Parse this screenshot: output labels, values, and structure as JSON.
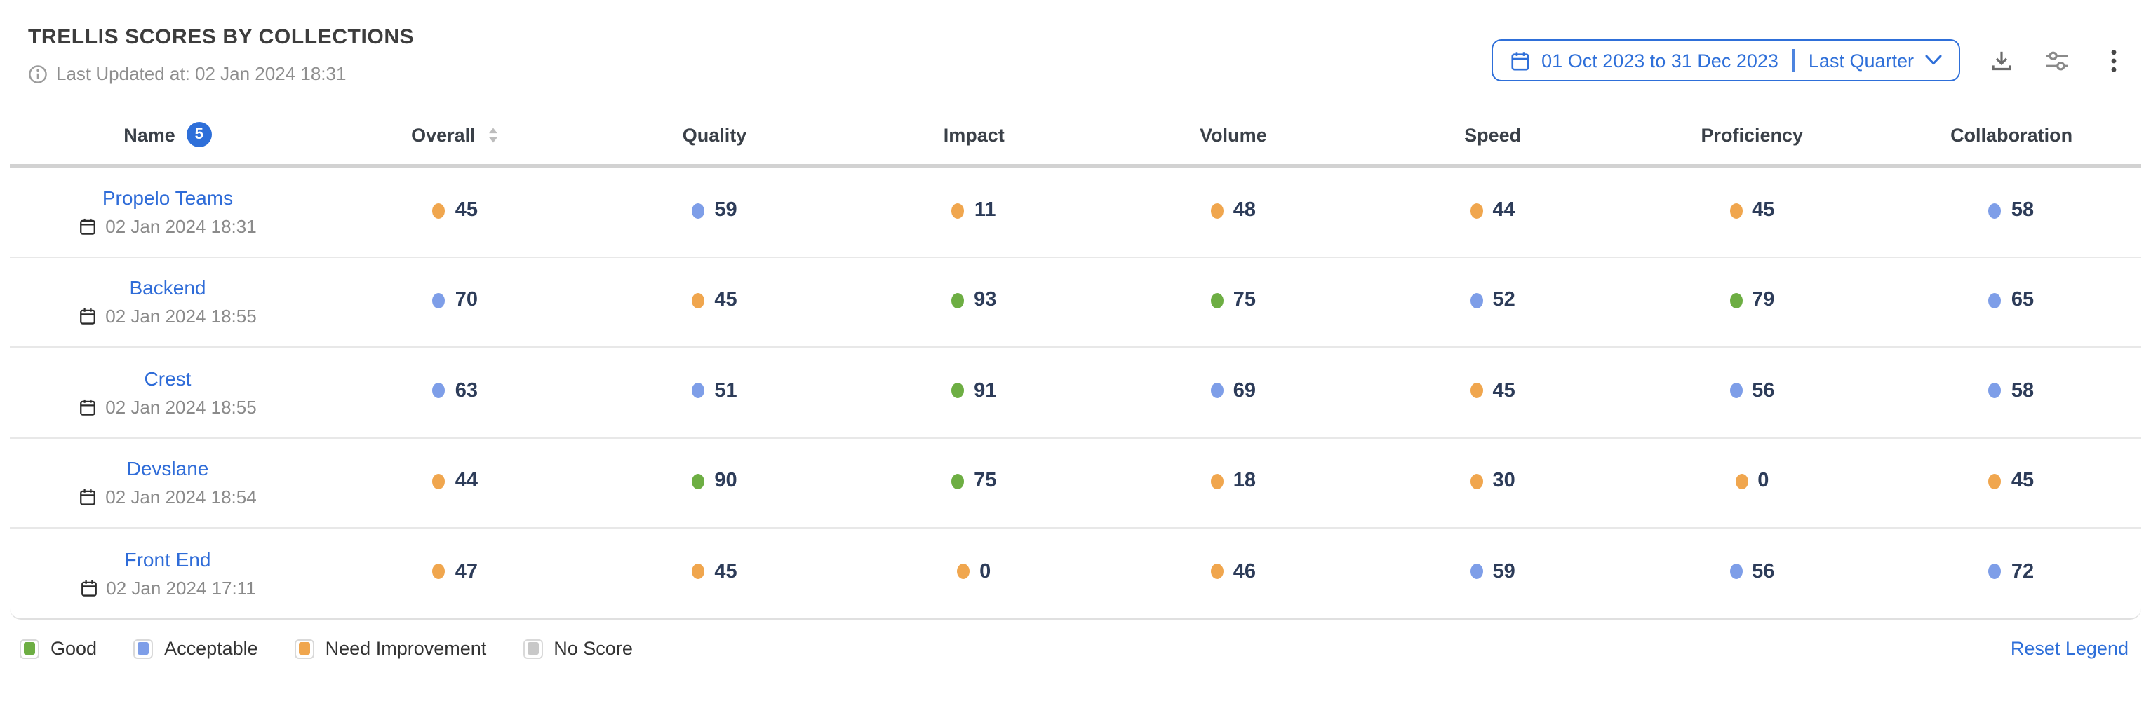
{
  "header": {
    "title": "TRELLIS SCORES BY COLLECTIONS",
    "last_updated": "Last Updated at: 02 Jan 2024 18:31"
  },
  "controls": {
    "date_range": {
      "range": "01 Oct 2023 to 31 Dec 2023",
      "preset": "Last Quarter"
    },
    "icons": {
      "info-icon": "ⓘ",
      "calendar-icon": "▦",
      "chevron-down-icon": "⌄",
      "download-icon": "⇩",
      "filter-settings-icon": "≑",
      "kebab-menu-icon": "⋮",
      "sort-icon": "⇅"
    }
  },
  "table": {
    "columns": [
      "Name",
      "Overall",
      "Quality",
      "Impact",
      "Volume",
      "Speed",
      "Proficiency",
      "Collaboration"
    ],
    "name_badge_count": "5",
    "sorted_column": "Overall",
    "rows": [
      {
        "name": "Propelo Teams",
        "updated": "02 Jan 2024 18:31",
        "scores": [
          {
            "value": 45,
            "status": "need_improvement"
          },
          {
            "value": 59,
            "status": "acceptable"
          },
          {
            "value": 11,
            "status": "need_improvement"
          },
          {
            "value": 48,
            "status": "need_improvement"
          },
          {
            "value": 44,
            "status": "need_improvement"
          },
          {
            "value": 45,
            "status": "need_improvement"
          },
          {
            "value": 58,
            "status": "acceptable"
          }
        ]
      },
      {
        "name": "Backend",
        "updated": "02 Jan 2024 18:55",
        "scores": [
          {
            "value": 70,
            "status": "acceptable"
          },
          {
            "value": 45,
            "status": "need_improvement"
          },
          {
            "value": 93,
            "status": "good"
          },
          {
            "value": 75,
            "status": "good"
          },
          {
            "value": 52,
            "status": "acceptable"
          },
          {
            "value": 79,
            "status": "good"
          },
          {
            "value": 65,
            "status": "acceptable"
          }
        ]
      },
      {
        "name": "Crest",
        "updated": "02 Jan 2024 18:55",
        "scores": [
          {
            "value": 63,
            "status": "acceptable"
          },
          {
            "value": 51,
            "status": "acceptable"
          },
          {
            "value": 91,
            "status": "good"
          },
          {
            "value": 69,
            "status": "acceptable"
          },
          {
            "value": 45,
            "status": "need_improvement"
          },
          {
            "value": 56,
            "status": "acceptable"
          },
          {
            "value": 58,
            "status": "acceptable"
          }
        ]
      },
      {
        "name": "Devslane",
        "updated": "02 Jan 2024 18:54",
        "scores": [
          {
            "value": 44,
            "status": "need_improvement"
          },
          {
            "value": 90,
            "status": "good"
          },
          {
            "value": 75,
            "status": "good"
          },
          {
            "value": 18,
            "status": "need_improvement"
          },
          {
            "value": 30,
            "status": "need_improvement"
          },
          {
            "value": 0,
            "status": "need_improvement"
          },
          {
            "value": 45,
            "status": "need_improvement"
          }
        ]
      },
      {
        "name": "Front End",
        "updated": "02 Jan 2024 17:11",
        "scores": [
          {
            "value": 47,
            "status": "need_improvement"
          },
          {
            "value": 45,
            "status": "need_improvement"
          },
          {
            "value": 0,
            "status": "need_improvement"
          },
          {
            "value": 46,
            "status": "need_improvement"
          },
          {
            "value": 59,
            "status": "acceptable"
          },
          {
            "value": 56,
            "status": "acceptable"
          },
          {
            "value": 72,
            "status": "acceptable"
          }
        ]
      }
    ]
  },
  "legend": {
    "items": [
      {
        "label": "Good",
        "status": "good"
      },
      {
        "label": "Acceptable",
        "status": "acceptable"
      },
      {
        "label": "Need Improvement",
        "status": "need_improvement"
      },
      {
        "label": "No Score",
        "status": "no_score"
      }
    ],
    "reset_label": "Reset Legend"
  },
  "colors": {
    "good": "#6dae43",
    "acceptable": "#7e9ee8",
    "need_improvement": "#f0a64e",
    "no_score": "#c8c8c8",
    "accent_blue": "#2e6fd9"
  }
}
